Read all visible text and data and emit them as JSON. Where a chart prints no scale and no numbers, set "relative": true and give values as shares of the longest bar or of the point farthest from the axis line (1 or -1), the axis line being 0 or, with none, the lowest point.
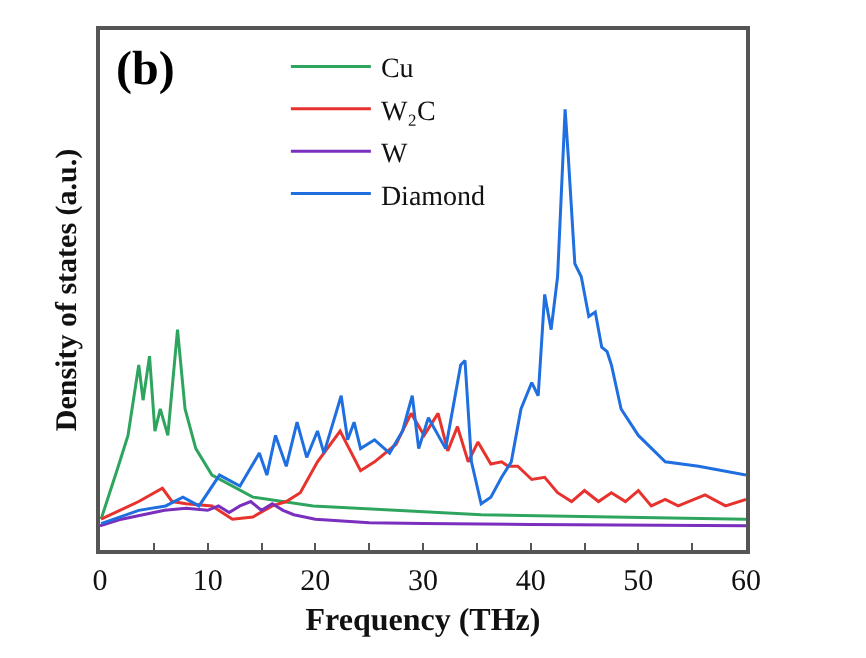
{
  "chart_data": {
    "type": "line",
    "relative": true,
    "xlabel": "Frequency (THz)",
    "ylabel": "Density of states (a.u.)",
    "annotations": [
      "(b)"
    ],
    "legend": "top",
    "xlim": [
      0,
      60
    ],
    "xticks": [
      0,
      {
        "value": 5,
        "label": null
      },
      10,
      {
        "value": 15,
        "label": null
      },
      20,
      {
        "value": 25,
        "label": null
      },
      30,
      {
        "value": 35,
        "label": null
      },
      40,
      {
        "value": 45,
        "label": null
      },
      50,
      {
        "value": 55,
        "label": null
      },
      60
    ],
    "tick_labels": "x",
    "series": [
      {
        "name": "Cu",
        "color": "#2ea55f",
        "x": [
          0.1,
          1.7,
          2.6,
          3.6,
          4.0,
          4.6,
          5.1,
          5.6,
          6.3,
          7.2,
          7.9,
          8.9,
          10.4,
          14.2,
          19.8,
          35.4,
          60
        ],
        "values": [
          0.07,
          0.19,
          0.26,
          0.42,
          0.34,
          0.44,
          0.27,
          0.32,
          0.26,
          0.5,
          0.32,
          0.23,
          0.17,
          0.12,
          0.1,
          0.08,
          0.07
        ]
      },
      {
        "name": "W₂C",
        "color": "#e8322d",
        "x": [
          0.1,
          3.6,
          5.8,
          6.7,
          8,
          10.4,
          12.3,
          14.2,
          16,
          17.3,
          18.6,
          20.2,
          22.3,
          24.2,
          25.5,
          27.5,
          28.9,
          30.1,
          31.4,
          32.3,
          33.2,
          34.2,
          35.1,
          36.3,
          37.3,
          37.9,
          38.8,
          40.1,
          41.3,
          42.5,
          43.8,
          45,
          46.3,
          47.5,
          48.8,
          50,
          51.2,
          52.5,
          53.7,
          56.2,
          58.1,
          60
        ],
        "values": [
          0.07,
          0.11,
          0.14,
          0.11,
          0.105,
          0.1,
          0.07,
          0.075,
          0.1,
          0.11,
          0.13,
          0.2,
          0.27,
          0.18,
          0.2,
          0.24,
          0.31,
          0.26,
          0.31,
          0.225,
          0.28,
          0.2,
          0.245,
          0.195,
          0.2,
          0.19,
          0.19,
          0.16,
          0.165,
          0.13,
          0.11,
          0.135,
          0.11,
          0.13,
          0.11,
          0.135,
          0.1,
          0.115,
          0.1,
          0.125,
          0.1,
          0.115
        ]
      },
      {
        "name": "W",
        "color": "#7a2fbf",
        "x": [
          0,
          2,
          4,
          6,
          8,
          10,
          11,
          12,
          13,
          14,
          15,
          16,
          17,
          18,
          20,
          25,
          30,
          40,
          60
        ],
        "values": [
          0.055,
          0.07,
          0.08,
          0.09,
          0.095,
          0.09,
          0.1,
          0.085,
          0.1,
          0.11,
          0.09,
          0.105,
          0.09,
          0.08,
          0.07,
          0.062,
          0.06,
          0.058,
          0.055
        ]
      },
      {
        "name": "Diamond",
        "color": "#1f6fe0",
        "x": [
          0.1,
          3.6,
          6.1,
          7.7,
          9.2,
          11.1,
          13,
          14.8,
          15.5,
          16.3,
          17.3,
          18.3,
          19.2,
          20.2,
          20.8,
          22.4,
          23,
          23.6,
          24.2,
          25.5,
          26.9,
          28.1,
          29,
          29.6,
          30.5,
          32.1,
          33.5,
          33.9,
          34.5,
          35.4,
          36.3,
          37.3,
          38.2,
          39.1,
          40.1,
          40.7,
          41.3,
          41.9,
          42.5,
          43.2,
          43.5,
          44.1,
          44.7,
          45.4,
          46,
          46.6,
          47.1,
          47.5,
          48.4,
          50,
          52.5,
          55.6,
          60
        ],
        "values": [
          0.06,
          0.09,
          0.1,
          0.12,
          0.1,
          0.17,
          0.145,
          0.22,
          0.17,
          0.26,
          0.19,
          0.29,
          0.21,
          0.27,
          0.22,
          0.35,
          0.25,
          0.29,
          0.23,
          0.25,
          0.22,
          0.27,
          0.35,
          0.23,
          0.3,
          0.23,
          0.42,
          0.43,
          0.2,
          0.105,
          0.12,
          0.165,
          0.2,
          0.32,
          0.38,
          0.35,
          0.58,
          0.5,
          0.62,
          1.0,
          0.89,
          0.65,
          0.62,
          0.53,
          0.54,
          0.46,
          0.45,
          0.42,
          0.32,
          0.26,
          0.2,
          0.19,
          0.17
        ]
      }
    ]
  }
}
